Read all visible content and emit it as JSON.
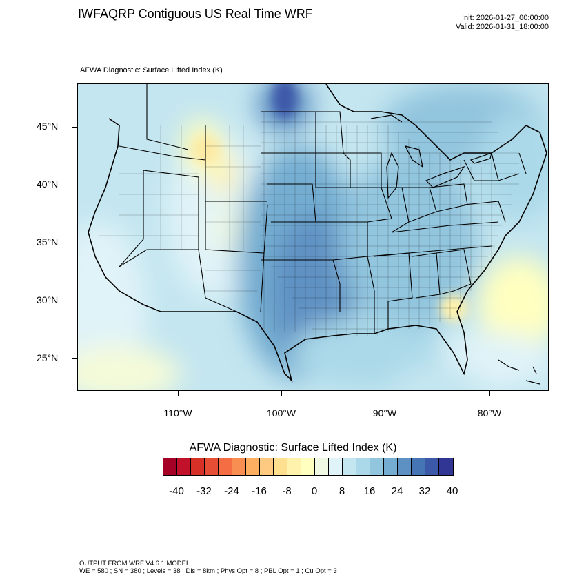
{
  "header": {
    "title": "IWFAQRP Contiguous US Real Time WRF",
    "init": "Init: 2026-01-27_00:00:00",
    "valid": "Valid: 2026-01-31_18:00:00"
  },
  "plot": {
    "subtitle": "AFWA Diagnostic: Surface Lifted Index   (K)"
  },
  "axes": {
    "lat_labels": [
      "45°N",
      "40°N",
      "35°N",
      "30°N",
      "25°N"
    ],
    "lon_labels": [
      "110°W",
      "100°W",
      "90°W",
      "80°W"
    ]
  },
  "colorbar": {
    "title": "AFWA Diagnostic: Surface Lifted Index  (K)",
    "colors": [
      "#a50026",
      "#c2112a",
      "#d73027",
      "#e54e35",
      "#f46d43",
      "#f98e52",
      "#fdae61",
      "#fec980",
      "#fee090",
      "#fff2ac",
      "#ffffbf",
      "#eff9e4",
      "#e0f3f8",
      "#c4e6f0",
      "#abd9e9",
      "#92c5de",
      "#74add1",
      "#5e91c3",
      "#4575b4",
      "#3c58a8",
      "#313695"
    ],
    "labels": [
      "-40",
      "-32",
      "-24",
      "-16",
      "-8",
      "0",
      "8",
      "16",
      "24",
      "32",
      "40"
    ]
  },
  "footer": {
    "line1": "OUTPUT FROM WRF V4.6.1 MODEL",
    "line2": "WE = 580 ; SN = 380 ; Levels = 38 ; Dis = 8km ; Phys Opt = 8 ; PBL Opt = 1 ; Cu Opt = 3"
  }
}
